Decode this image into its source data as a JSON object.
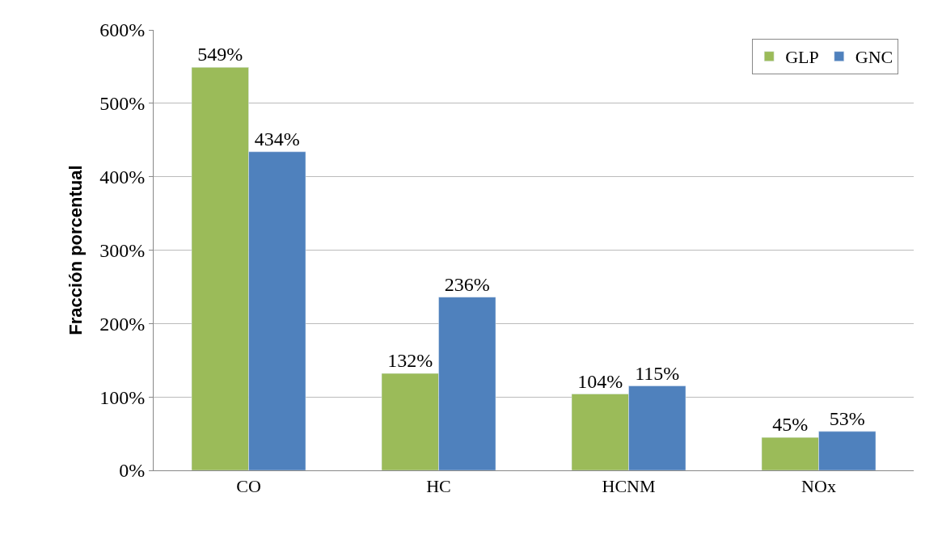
{
  "chart_data": {
    "type": "bar",
    "ylabel": "Fracción porcentual",
    "categories": [
      "CO",
      "HC",
      "HCNM",
      "NOx"
    ],
    "series": [
      {
        "name": "GLP",
        "color": "#9bbb59",
        "values": [
          549,
          132,
          104,
          45
        ],
        "value_labels": [
          "549%",
          "132%",
          "104%",
          "45%"
        ]
      },
      {
        "name": "GNC",
        "color": "#4f81bd",
        "values": [
          434,
          236,
          115,
          53
        ],
        "value_labels": [
          "434%",
          "236%",
          "115%",
          "53%"
        ]
      }
    ],
    "ylim": [
      0,
      600
    ],
    "yticks": [
      {
        "value": 0,
        "label": "0%"
      },
      {
        "value": 100,
        "label": "100%"
      },
      {
        "value": 200,
        "label": "200%"
      },
      {
        "value": 300,
        "label": "300%"
      },
      {
        "value": 400,
        "label": "400%"
      },
      {
        "value": 500,
        "label": "500%"
      },
      {
        "value": 600,
        "label": "600%"
      }
    ],
    "grid": "y",
    "legend": "top right"
  }
}
